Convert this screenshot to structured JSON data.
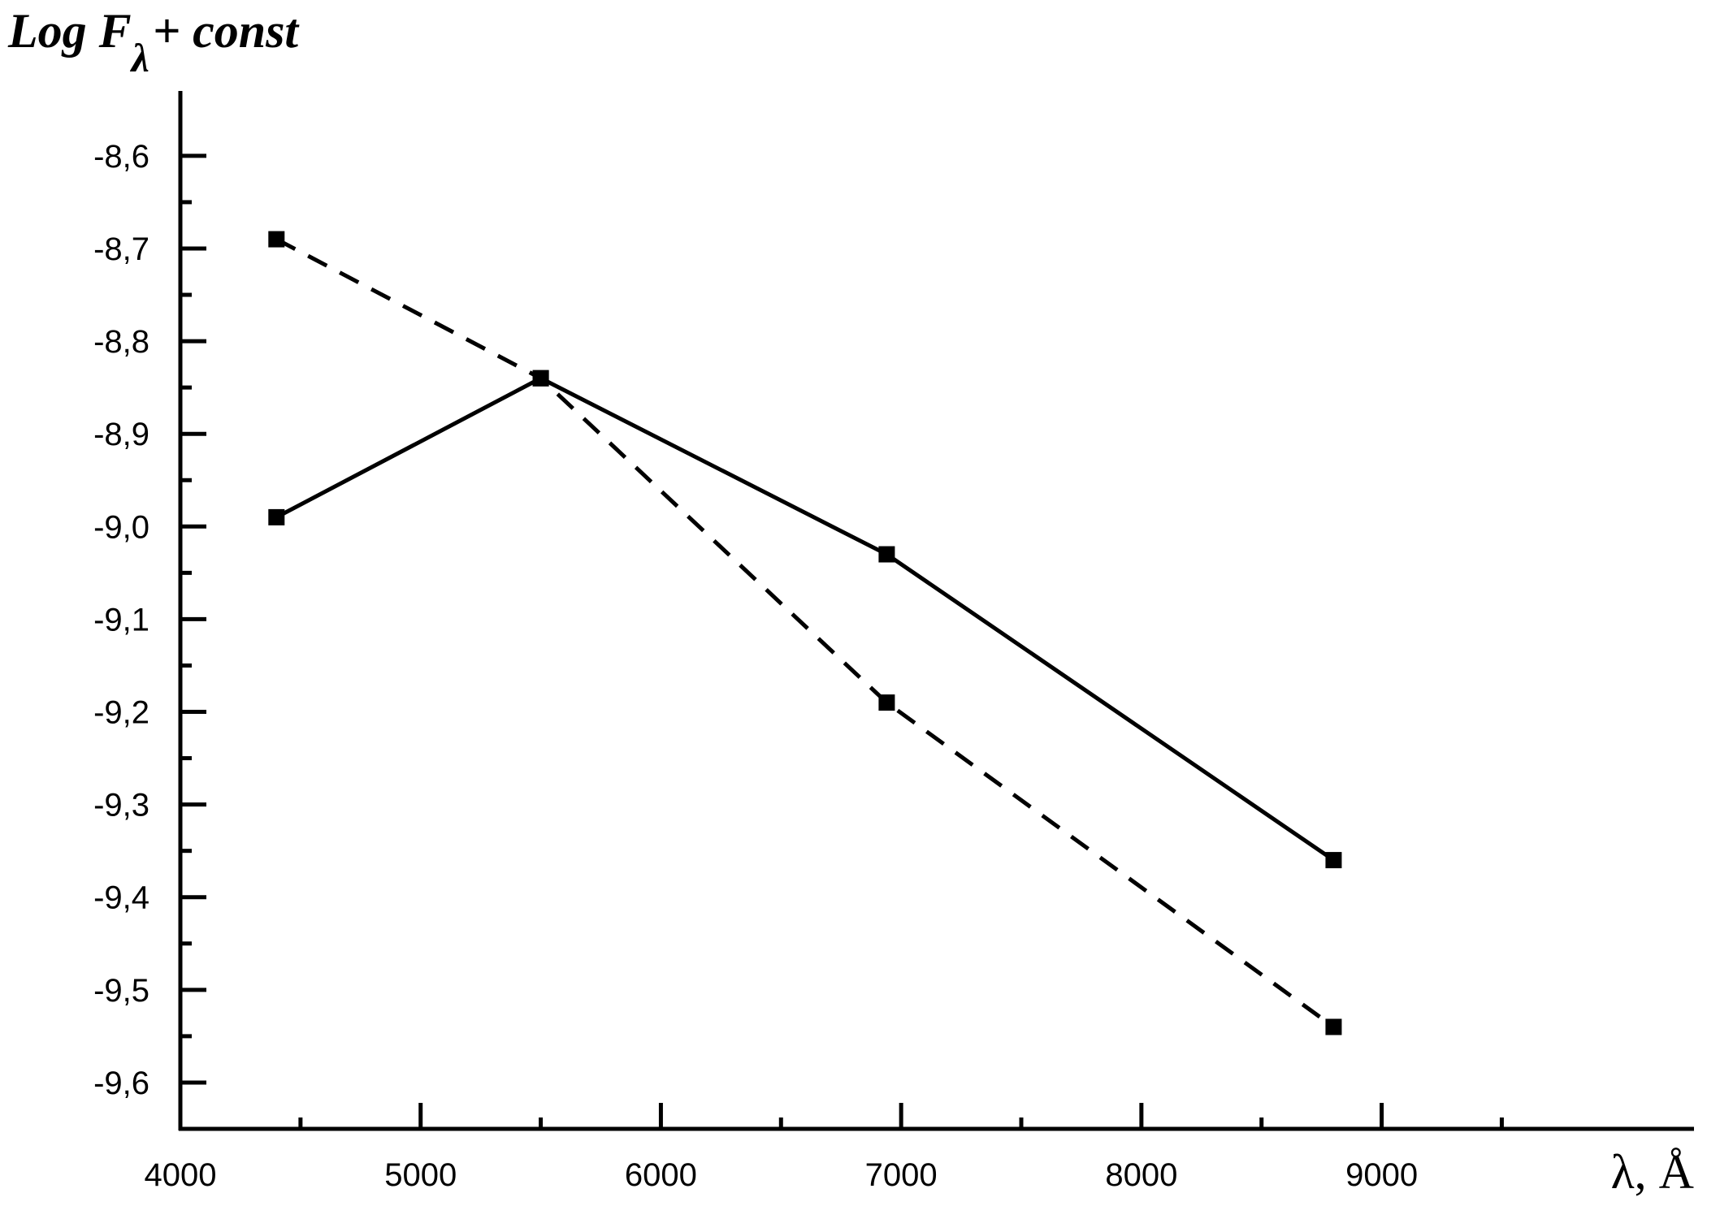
{
  "chart_data": {
    "type": "line",
    "ylabel": {
      "main": "Log F",
      "subscript": "λ",
      "suffix": "+ const"
    },
    "xlabel": "λ, Å",
    "xlim": [
      4000,
      10300
    ],
    "ylim": [
      -9.65,
      -8.53
    ],
    "x_ticks": [
      4000,
      5000,
      6000,
      7000,
      8000,
      9000
    ],
    "x_tick_labels": [
      "4000",
      "5000",
      "6000",
      "7000",
      "8000",
      "9000"
    ],
    "x_minor_ticks": [
      4500,
      5500,
      6500,
      7500,
      8500,
      9500
    ],
    "y_ticks": [
      -8.6,
      -8.7,
      -8.8,
      -8.9,
      -9.0,
      -9.1,
      -9.2,
      -9.3,
      -9.4,
      -9.5,
      -9.6
    ],
    "y_tick_labels": [
      "-8,6",
      "-8,7",
      "-8,8",
      "-8,9",
      "-9,0",
      "-9,1",
      "-9,2",
      "-9,3",
      "-9,4",
      "-9,5",
      "-9,6"
    ],
    "y_minor_ticks": [
      -8.65,
      -8.75,
      -8.85,
      -8.95,
      -9.05,
      -9.15,
      -9.25,
      -9.35,
      -9.45,
      -9.55
    ],
    "grid": false,
    "series": [
      {
        "style": "solid",
        "x": [
          4400,
          5500,
          6940,
          8800
        ],
        "y": [
          -8.99,
          -8.84,
          -9.03,
          -9.36
        ]
      },
      {
        "style": "dashed",
        "x": [
          4400,
          5500,
          6940,
          8800
        ],
        "y": [
          -8.69,
          -8.84,
          -9.19,
          -9.54
        ]
      }
    ]
  }
}
